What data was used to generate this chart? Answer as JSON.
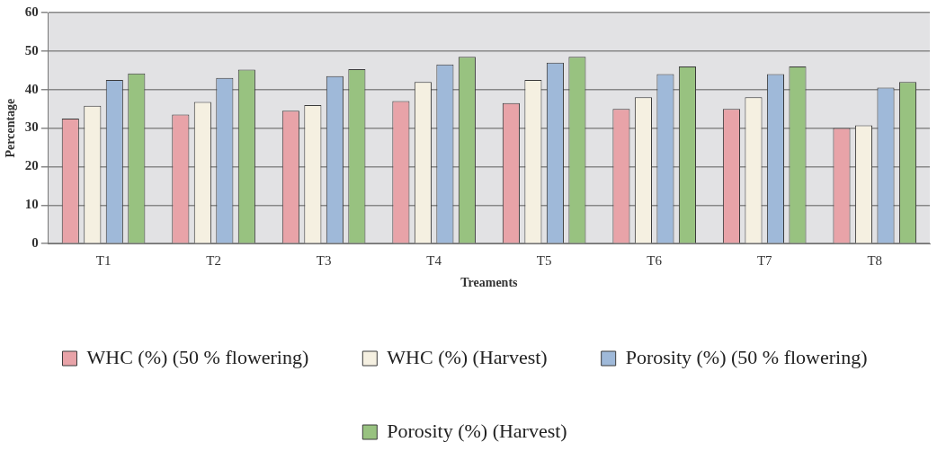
{
  "chart_data": {
    "type": "bar",
    "xlabel": "Treaments",
    "ylabel": "Percentage",
    "categories": [
      "T1",
      "T2",
      "T3",
      "T4",
      "T5",
      "T6",
      "T7",
      "T8"
    ],
    "series": [
      {
        "name": "WHC (%) (50 % flowering)",
        "color": "#e8a3a8",
        "values": [
          32.5,
          33.5,
          34.5,
          37,
          36.5,
          35,
          35,
          30
        ]
      },
      {
        "name": "WHC (%) (Harvest)",
        "color": "#f5f0e1",
        "values": [
          35.8,
          36.8,
          36,
          42,
          42.5,
          38,
          38,
          30.7
        ]
      },
      {
        "name": "Porosity (%) (50 % flowering)",
        "color": "#9fb9d9",
        "values": [
          42.5,
          43,
          43.5,
          46.5,
          47,
          44,
          44,
          40.5
        ]
      },
      {
        "name": "Porosity (%) (Harvest)",
        "color": "#98c280",
        "values": [
          44.2,
          45.2,
          45.3,
          48.5,
          48.5,
          46,
          46,
          42
        ]
      }
    ],
    "ylim": [
      0,
      60
    ],
    "yticks": [
      0,
      10,
      20,
      30,
      40,
      50,
      60
    ],
    "grid": "y",
    "legend": "bottom"
  }
}
